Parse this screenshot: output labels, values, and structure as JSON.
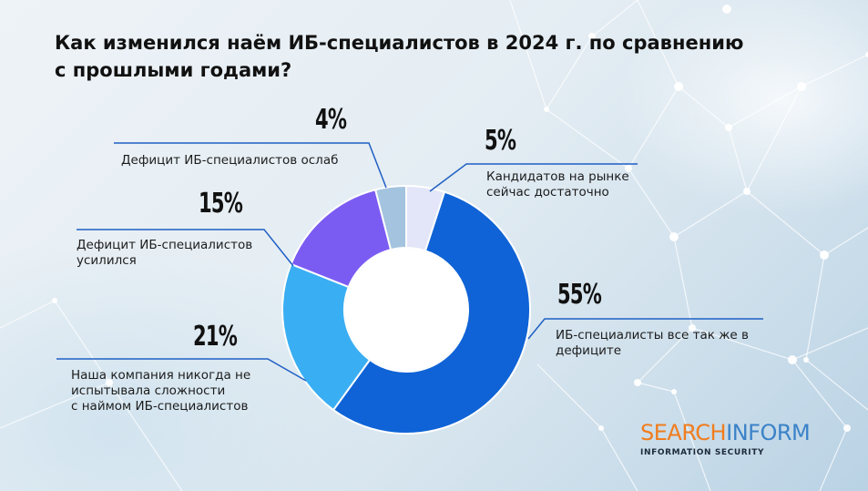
{
  "title": "Как изменился наём ИБ-специалистов в 2024 г. по сравнению с прошлыми годами?",
  "logo": {
    "part1": "SEARCH",
    "part2": "INFORM",
    "subtitle": "INFORMATION SECURITY"
  },
  "colors": {
    "accent_orange": "#f07d1e",
    "accent_blue": "#3b82c8",
    "leader_line": "#1f5fc4"
  },
  "chart_data": {
    "type": "donut",
    "title": "Как изменился наём ИБ-специалистов в 2024 г. по сравнению с прошлыми годами?",
    "series": [
      {
        "label": "Кандидатов на рынке сейчас достаточно",
        "value": 5,
        "value_label": "5%",
        "color": "#e2e6f8"
      },
      {
        "label": "ИБ-специалисты все так же в дефиците",
        "value": 55,
        "value_label": "55%",
        "color": "#0f63d6"
      },
      {
        "label": "Наша компания никогда не испытывала сложности с наймом ИБ-специалистов",
        "value": 21,
        "value_label": "21%",
        "color": "#3aaef2"
      },
      {
        "label": "Дефицит ИБ-специалистов усилился",
        "value": 15,
        "value_label": "15%",
        "color": "#7b5cf2"
      },
      {
        "label": "Дефицит ИБ-специалистов ослаб",
        "value": 4,
        "value_label": "4%",
        "color": "#a3c3de"
      }
    ],
    "label_lines": [
      [
        "Кандидатов на рынке",
        "сейчас достаточно"
      ],
      [
        "ИБ-специалисты все так же в",
        "дефиците"
      ],
      [
        "Наша компания никогда не",
        "испытывала сложности",
        "с наймом ИБ-специалистов"
      ],
      [
        "Дефицит ИБ-специалистов",
        "усилился"
      ],
      [
        "Дефицит ИБ-специалистов ослаб"
      ]
    ]
  }
}
